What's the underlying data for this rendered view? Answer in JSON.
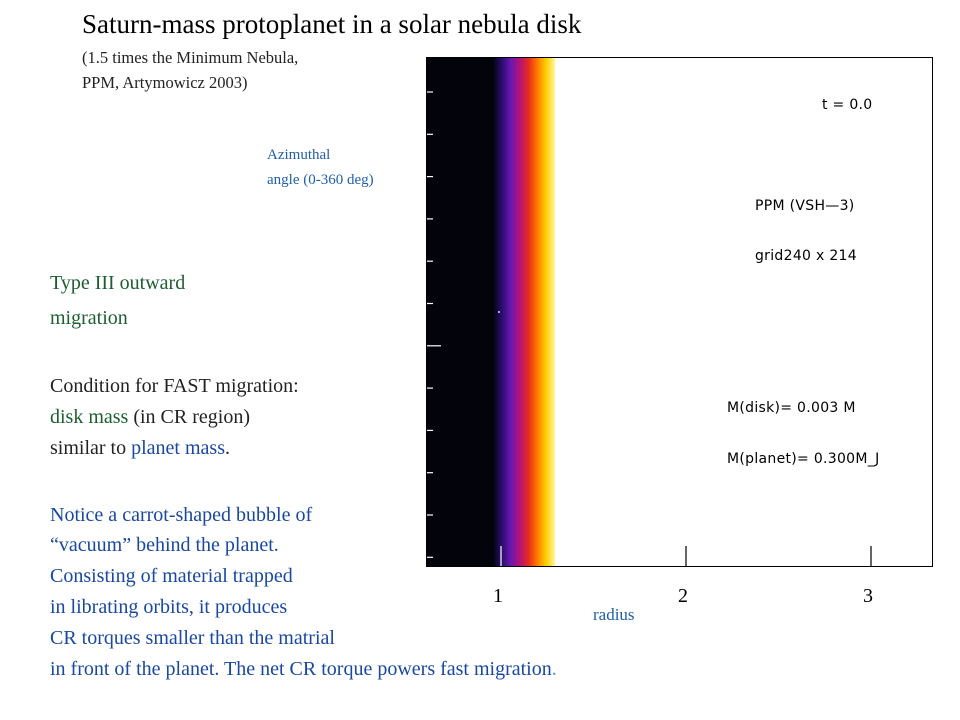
{
  "title": "Saturn-mass protoplanet in a solar nebula disk",
  "subtitle": {
    "line1": "(1.5 times the Minimum Nebula,",
    "line2": "PPM, Artymowicz 2003)"
  },
  "axes": {
    "y_label": {
      "line1": "Azimuthal",
      "line2": "angle (0-360 deg)"
    },
    "x_label": "radius",
    "x_ticks": [
      "1",
      "2",
      "3"
    ]
  },
  "simulation": {
    "time": "t =  0.0",
    "method": "PPM (VSH—3)",
    "grid": "grid240 x 214",
    "disk_mass": "M(disk)= 0.003 M",
    "planet_mass": "M(planet)=  0.300M_J",
    "colormap": [
      "#03030c",
      "#2a0d6e",
      "#6a18b0",
      "#b0127a",
      "#e62b1f",
      "#ff7a00",
      "#ffd000",
      "#fff6a0"
    ]
  },
  "text": {
    "type_iii": {
      "line1": "Type III outward",
      "line2": "migration"
    },
    "condition": {
      "line1": "Condition for FAST migration:",
      "line2_part1": "disk mass",
      "line2_part2": " (in CR region)",
      "line3_part1": "similar to ",
      "line3_part2": "planet mass",
      "line3_part3": "."
    },
    "notice": {
      "line1": "Notice a carrot-shaped bubble of",
      "line2": "“vacuum” behind the planet.",
      "line3": "Consisting of material trapped",
      "line4": "in librating orbits, it produces",
      "line5": "CR torques smaller than the matrial",
      "line6_part1": "in front of the planet. The net CR torque powers fast migration",
      "line6_part2": "."
    }
  },
  "colors": {
    "label_blue": "#1f5fa8",
    "text_blue": "#1848a0",
    "text_green": "#1c5e30"
  }
}
